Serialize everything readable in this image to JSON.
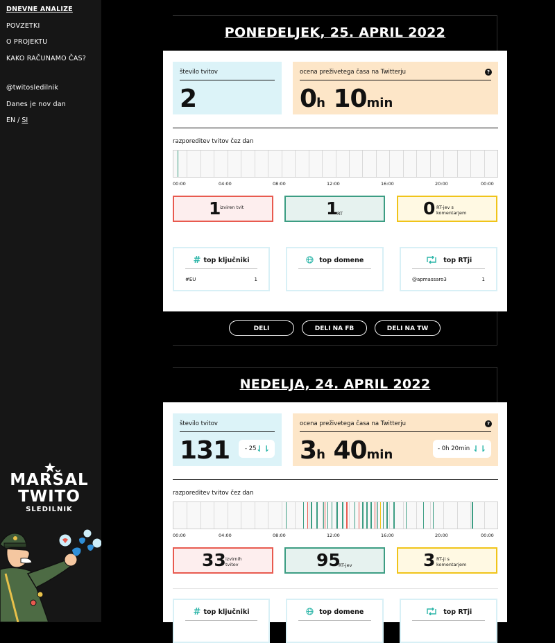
{
  "sidebar": {
    "nav": [
      {
        "label": "DNEVNE ANALIZE",
        "active": true
      },
      {
        "label": "POVZETKI"
      },
      {
        "label": "O PROJEKTU"
      },
      {
        "label": "KAKO RAČUNAMO ČAS?"
      }
    ],
    "handle": "@twitosledilnik",
    "tagline": "Danes je nov dan",
    "lang_en": "EN",
    "lang_sep": " / ",
    "lang_si": "SI",
    "logo": {
      "line1": "MARŠAL",
      "line2": "TWITO",
      "line3": "SLEDILNIK"
    }
  },
  "days": [
    {
      "title": "PONEDELJEK, 25. APRIL 2022",
      "tweets_label": "število tvitov",
      "tweets_value": "2",
      "time_label": "ocena preživetega časa na Twitterju",
      "time_hours": "0",
      "time_h_unit": "h",
      "time_minutes": "10",
      "time_min_unit": "min",
      "distribution_label": "razporeditev tvitov čez dan",
      "axis": [
        "00:00",
        "04:00",
        "08:00",
        "12:00",
        "16:00",
        "20:00",
        "00:00"
      ],
      "counts": [
        {
          "value": "1",
          "desc": "izviren tvit",
          "color": "red"
        },
        {
          "value": "1",
          "desc": "RT",
          "color": "green"
        },
        {
          "value": "0",
          "desc": "RT-jev s komentarjem",
          "color": "yellow"
        }
      ],
      "tops": [
        {
          "title": "top ključniki",
          "icon": "hash-icon",
          "item": "#EU",
          "count": "1"
        },
        {
          "title": "top domene",
          "icon": "globe-icon",
          "item": "",
          "count": ""
        },
        {
          "title": "top RTji",
          "icon": "retweet-icon",
          "item": "@apmassaro3",
          "count": "1"
        }
      ],
      "buttons": [
        "DELI",
        "DELI NA FB",
        "DELI NA TW"
      ],
      "tweet_hours": [
        0.3
      ],
      "tweet_colors": [
        "#3c9d83"
      ]
    },
    {
      "title": "NEDELJA, 24. APRIL 2022",
      "tweets_label": "število tvitov",
      "tweets_value": "131",
      "tweets_delta": "- 25",
      "time_label": "ocena preživetega časa na Twitterju",
      "time_hours": "3",
      "time_h_unit": "h",
      "time_minutes": "40",
      "time_min_unit": "min",
      "time_delta": "- 0h 20min",
      "distribution_label": "razporeditev tvitov čez dan",
      "axis": [
        "00:00",
        "04:00",
        "08:00",
        "12:00",
        "16:00",
        "20:00",
        "00:00"
      ],
      "counts": [
        {
          "value": "33",
          "desc": "izvirnih tvitov",
          "color": "red"
        },
        {
          "value": "95",
          "desc": "RT-jev",
          "color": "green"
        },
        {
          "value": "3",
          "desc": "RT-ji s komentarjem",
          "color": "yellow"
        }
      ],
      "tops": [
        {
          "title": "top ključniki",
          "icon": "hash-icon"
        },
        {
          "title": "top domene",
          "icon": "globe-icon"
        },
        {
          "title": "top RTji",
          "icon": "retweet-icon"
        }
      ],
      "tweet_hours": [
        8.3,
        9.6,
        9.9,
        10.2,
        10.6,
        11.1,
        11.2,
        11.4,
        11.7,
        12.1,
        12.5,
        12.8,
        13.4,
        13.7,
        14.0,
        14.3,
        14.6,
        14.9,
        15.1,
        15.3,
        15.5,
        15.8,
        16.3,
        17.2,
        18.5,
        19.2,
        22.1
      ],
      "tweet_colors": [
        "#3c9d83",
        "#3c9d83",
        "#e85a4f",
        "#3c9d83",
        "#3c9d83",
        "#3c9d83",
        "#e85a4f",
        "#3c9d83",
        "#3c9d83",
        "#3c9d83",
        "#3c9d83",
        "#e85a4f",
        "#3c9d83",
        "#e85a4f",
        "#3c9d83",
        "#3c9d83",
        "#3c9d83",
        "#e85a4f",
        "#3c9d83",
        "#f0c419",
        "#3c9d83",
        "#3c9d83",
        "#3c9d83",
        "#3c9d83",
        "#3c9d83",
        "#3c9d83",
        "#3c9d83"
      ]
    }
  ]
}
